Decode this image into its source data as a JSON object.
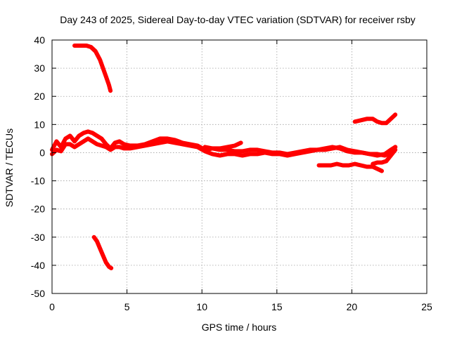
{
  "chart_data": {
    "type": "line",
    "title": "Day 243 of 2025, Sidereal Day-to-day VTEC variation (SDTVAR) for receiver rsby",
    "xlabel": "GPS time / hours",
    "ylabel": "SDTVAR / TECUs",
    "xlim": [
      0,
      25
    ],
    "ylim": [
      -50,
      40
    ],
    "xticks": [
      0,
      5,
      10,
      15,
      20,
      25
    ],
    "yticks": [
      -50,
      -40,
      -30,
      -20,
      -10,
      0,
      10,
      20,
      30,
      40
    ],
    "grid": true,
    "line_color": "#ff0000",
    "series": [
      {
        "name": "main-upper",
        "points": [
          [
            0,
            1
          ],
          [
            0.3,
            4
          ],
          [
            0.6,
            2
          ],
          [
            0.9,
            5
          ],
          [
            1.2,
            6
          ],
          [
            1.5,
            4
          ],
          [
            1.8,
            6
          ],
          [
            2.1,
            7
          ],
          [
            2.4,
            7.5
          ],
          [
            2.7,
            7
          ],
          [
            3,
            6
          ],
          [
            3.3,
            5
          ],
          [
            3.6,
            3
          ],
          [
            3.9,
            1.5
          ],
          [
            4.2,
            3.5
          ],
          [
            4.5,
            4
          ],
          [
            4.8,
            3
          ],
          [
            5.2,
            2.5
          ],
          [
            5.7,
            2.5
          ],
          [
            6.2,
            3
          ],
          [
            6.7,
            4
          ],
          [
            7.2,
            5
          ],
          [
            7.7,
            5
          ],
          [
            8.2,
            4.5
          ],
          [
            8.7,
            3.5
          ],
          [
            9.2,
            3
          ],
          [
            9.7,
            2.5
          ],
          [
            10.2,
            1
          ],
          [
            10.7,
            1.5
          ],
          [
            11.2,
            1.5
          ],
          [
            11.7,
            2
          ],
          [
            12.2,
            2.5
          ],
          [
            12.6,
            3.5
          ]
        ]
      },
      {
        "name": "main-lower",
        "points": [
          [
            0,
            -0.5
          ],
          [
            0.3,
            1
          ],
          [
            0.6,
            0.5
          ],
          [
            0.9,
            3
          ],
          [
            1.2,
            3
          ],
          [
            1.5,
            2
          ],
          [
            1.8,
            3
          ],
          [
            2.1,
            4
          ],
          [
            2.4,
            5
          ],
          [
            2.7,
            4
          ],
          [
            3,
            3
          ],
          [
            3.3,
            2.5
          ],
          [
            3.6,
            2
          ],
          [
            3.9,
            1
          ],
          [
            4.2,
            2
          ],
          [
            4.5,
            2
          ],
          [
            4.8,
            1.5
          ],
          [
            5.2,
            1.5
          ],
          [
            5.7,
            2
          ],
          [
            6.2,
            2.5
          ],
          [
            6.7,
            3
          ],
          [
            7.2,
            3.5
          ],
          [
            7.7,
            4
          ],
          [
            8.2,
            3.5
          ],
          [
            8.7,
            3
          ],
          [
            9.2,
            2.5
          ],
          [
            9.7,
            2
          ],
          [
            10.2,
            0.5
          ],
          [
            10.7,
            -0.5
          ],
          [
            11.2,
            -1
          ],
          [
            11.7,
            -0.5
          ],
          [
            12.2,
            -0.5
          ],
          [
            12.7,
            -1
          ],
          [
            13.2,
            -0.5
          ],
          [
            13.7,
            -0.5
          ],
          [
            14.2,
            0
          ],
          [
            14.7,
            -0.5
          ],
          [
            15.2,
            -0.5
          ],
          [
            15.7,
            -1
          ],
          [
            16.2,
            -0.5
          ],
          [
            16.7,
            0
          ],
          [
            17.2,
            0.5
          ],
          [
            17.7,
            1
          ],
          [
            18.2,
            1
          ],
          [
            18.7,
            1.5
          ],
          [
            19.2,
            2
          ],
          [
            19.7,
            1
          ],
          [
            20.2,
            0.5
          ],
          [
            20.7,
            0
          ],
          [
            21.2,
            -0.5
          ],
          [
            21.7,
            -0.5
          ],
          [
            22.2,
            -1
          ],
          [
            22.6,
            0
          ],
          [
            22.9,
            2
          ]
        ]
      },
      {
        "name": "mid-band",
        "points": [
          [
            10.2,
            2
          ],
          [
            10.7,
            1.5
          ],
          [
            11.2,
            1
          ],
          [
            11.7,
            1
          ],
          [
            12.2,
            0.5
          ],
          [
            12.7,
            0.5
          ],
          [
            13.2,
            1
          ],
          [
            13.7,
            1
          ],
          [
            14.2,
            0.5
          ],
          [
            14.7,
            0
          ],
          [
            15.2,
            0
          ],
          [
            15.7,
            -0.5
          ],
          [
            16.2,
            0
          ],
          [
            16.7,
            0.5
          ],
          [
            17.2,
            1
          ],
          [
            17.7,
            1
          ],
          [
            18.2,
            1.5
          ],
          [
            18.7,
            2
          ],
          [
            19.2,
            1.5
          ],
          [
            19.7,
            0.5
          ],
          [
            20.2,
            0
          ],
          [
            20.7,
            0
          ],
          [
            21.2,
            -0.5
          ],
          [
            21.7,
            -1
          ],
          [
            22.2,
            -0.5
          ],
          [
            22.6,
            1
          ],
          [
            22.9,
            2
          ]
        ]
      },
      {
        "name": "upper-right",
        "points": [
          [
            20.2,
            11
          ],
          [
            20.6,
            11.5
          ],
          [
            21,
            12
          ],
          [
            21.4,
            12
          ],
          [
            21.7,
            11
          ],
          [
            22,
            10.5
          ],
          [
            22.3,
            10.5
          ],
          [
            22.6,
            12
          ],
          [
            22.9,
            13.5
          ]
        ]
      },
      {
        "name": "lower-right",
        "points": [
          [
            17.8,
            -4.5
          ],
          [
            18.2,
            -4.5
          ],
          [
            18.6,
            -4.5
          ],
          [
            19,
            -4
          ],
          [
            19.4,
            -4.5
          ],
          [
            19.8,
            -4.5
          ],
          [
            20.2,
            -4
          ],
          [
            20.6,
            -4.5
          ],
          [
            21,
            -5
          ],
          [
            21.4,
            -5
          ],
          [
            21.8,
            -6
          ],
          [
            22,
            -6.5
          ]
        ]
      },
      {
        "name": "lower-right-end",
        "points": [
          [
            21.4,
            -4
          ],
          [
            21.7,
            -3.5
          ],
          [
            22,
            -3.5
          ],
          [
            22.3,
            -3
          ],
          [
            22.6,
            -1
          ],
          [
            22.9,
            1
          ]
        ]
      },
      {
        "name": "top-segment",
        "points": [
          [
            1.5,
            38
          ],
          [
            1.9,
            38
          ],
          [
            2.3,
            38
          ],
          [
            2.6,
            37.5
          ],
          [
            2.9,
            36
          ],
          [
            3.2,
            33
          ],
          [
            3.4,
            30
          ],
          [
            3.6,
            27
          ],
          [
            3.8,
            24
          ],
          [
            3.9,
            22
          ]
        ]
      },
      {
        "name": "bottom-segment",
        "points": [
          [
            2.8,
            -30
          ],
          [
            3.0,
            -31.5
          ],
          [
            3.2,
            -34
          ],
          [
            3.4,
            -36.5
          ],
          [
            3.6,
            -39
          ],
          [
            3.8,
            -40.5
          ],
          [
            3.95,
            -41
          ]
        ]
      }
    ]
  }
}
